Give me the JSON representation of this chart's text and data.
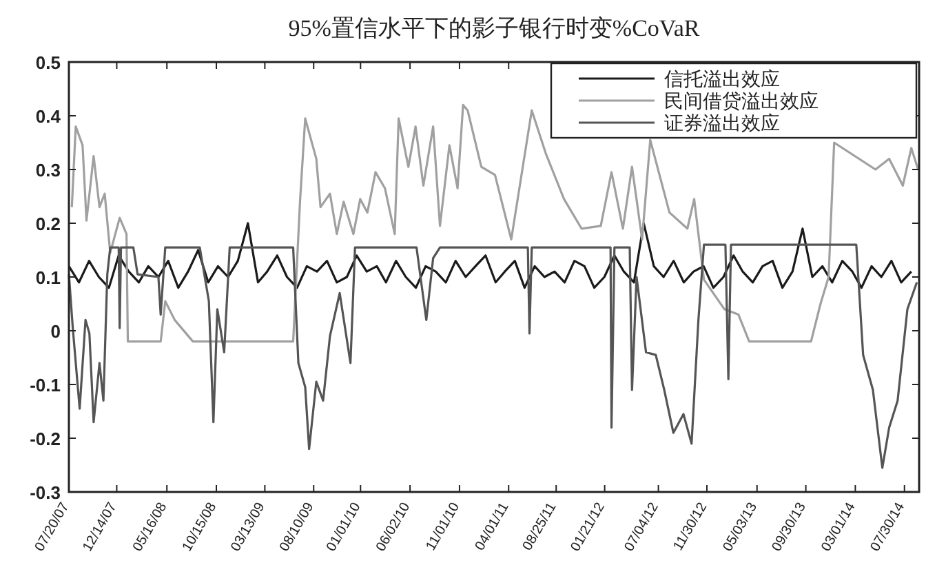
{
  "chart_data": {
    "type": "line",
    "title": "95%置信水平下的影子银行时变%CoVaR",
    "xlim": [
      "2007-07-20",
      "2014-09-13"
    ],
    "xticks": [
      {
        "value": "2007-07-20",
        "label": "07/20/07"
      },
      {
        "value": "2007-12-14",
        "label": "12/14/07"
      },
      {
        "value": "2008-05-16",
        "label": "05/16/08"
      },
      {
        "value": "2008-10-15",
        "label": "10/15/08"
      },
      {
        "value": "2009-03-13",
        "label": "03/13/09"
      },
      {
        "value": "2009-08-10",
        "label": "08/10/09"
      },
      {
        "value": "2010-01-01",
        "label": "01/01/10"
      },
      {
        "value": "2010-06-02",
        "label": "06/02/10"
      },
      {
        "value": "2010-11-01",
        "label": "11/01/10"
      },
      {
        "value": "2011-04-01",
        "label": "04/01/11"
      },
      {
        "value": "2011-08-25",
        "label": "08/25/11"
      },
      {
        "value": "2012-01-21",
        "label": "01/21/12"
      },
      {
        "value": "2012-07-04",
        "label": "07/04/12"
      },
      {
        "value": "2012-11-30",
        "label": "11/30/12"
      },
      {
        "value": "2013-05-03",
        "label": "05/03/13"
      },
      {
        "value": "2013-09-30",
        "label": "09/30/13"
      },
      {
        "value": "2014-03-01",
        "label": "03/01/14"
      },
      {
        "value": "2014-07-30",
        "label": "07/30/14"
      }
    ],
    "ylim": [
      -0.3,
      0.5
    ],
    "yticks": [
      -0.3,
      -0.2,
      -0.1,
      0,
      0.1,
      0.2,
      0.3,
      0.4,
      0.5
    ],
    "grid": false,
    "legend": "top right",
    "marker": "none",
    "line_style": "solid",
    "series": [
      {
        "name": "信托溢出效应",
        "color": "#1a1a1a",
        "x": [
          "2007-07-20",
          "2007-08-20",
          "2007-09-20",
          "2007-10-20",
          "2007-11-20",
          "2007-12-20",
          "2008-01-20",
          "2008-02-20",
          "2008-03-20",
          "2008-04-20",
          "2008-05-20",
          "2008-06-20",
          "2008-07-20",
          "2008-08-20",
          "2008-09-20",
          "2008-10-20",
          "2008-11-20",
          "2008-12-20",
          "2009-01-20",
          "2009-02-20",
          "2009-03-20",
          "2009-04-20",
          "2009-05-20",
          "2009-06-20",
          "2009-07-20",
          "2009-08-20",
          "2009-09-20",
          "2009-10-20",
          "2009-11-20",
          "2009-12-20",
          "2010-01-20",
          "2010-02-20",
          "2010-03-20",
          "2010-04-20",
          "2010-05-20",
          "2010-06-20",
          "2010-07-20",
          "2010-08-20",
          "2010-09-20",
          "2010-10-20",
          "2010-11-20",
          "2010-12-20",
          "2011-01-20",
          "2011-02-20",
          "2011-03-20",
          "2011-04-20",
          "2011-05-20",
          "2011-06-20",
          "2011-07-20",
          "2011-08-20",
          "2011-09-20",
          "2011-10-20",
          "2011-11-20",
          "2011-12-20",
          "2012-01-20",
          "2012-02-20",
          "2012-03-20",
          "2012-04-20",
          "2012-05-20",
          "2012-06-20",
          "2012-07-20",
          "2012-08-20",
          "2012-09-20",
          "2012-10-20",
          "2012-11-20",
          "2012-12-20",
          "2013-01-20",
          "2013-02-20",
          "2013-03-20",
          "2013-04-20",
          "2013-05-20",
          "2013-06-20",
          "2013-07-20",
          "2013-08-20",
          "2013-09-20",
          "2013-10-20",
          "2013-11-20",
          "2013-12-20",
          "2014-01-20",
          "2014-02-20",
          "2014-03-20",
          "2014-04-20",
          "2014-05-20",
          "2014-06-20",
          "2014-07-20",
          "2014-08-20"
        ],
        "values": [
          0.12,
          0.09,
          0.13,
          0.1,
          0.08,
          0.14,
          0.11,
          0.09,
          0.12,
          0.1,
          0.13,
          0.08,
          0.11,
          0.15,
          0.09,
          0.12,
          0.1,
          0.13,
          0.2,
          0.09,
          0.11,
          0.14,
          0.1,
          0.08,
          0.12,
          0.11,
          0.13,
          0.09,
          0.1,
          0.14,
          0.11,
          0.12,
          0.09,
          0.13,
          0.1,
          0.08,
          0.12,
          0.11,
          0.09,
          0.13,
          0.1,
          0.12,
          0.14,
          0.09,
          0.11,
          0.13,
          0.08,
          0.12,
          0.1,
          0.11,
          0.09,
          0.13,
          0.12,
          0.08,
          0.1,
          0.14,
          0.11,
          0.09,
          0.2,
          0.12,
          0.1,
          0.13,
          0.09,
          0.11,
          0.12,
          0.08,
          0.1,
          0.14,
          0.11,
          0.09,
          0.12,
          0.13,
          0.08,
          0.11,
          0.19,
          0.1,
          0.12,
          0.09,
          0.13,
          0.11,
          0.08,
          0.12,
          0.1,
          0.13,
          0.09,
          0.11
        ]
      },
      {
        "name": "民间借贷溢出效应",
        "color": "#a0a0a0",
        "x": [
          "2007-07-29",
          "2007-08-10",
          "2007-08-31",
          "2007-09-12",
          "2007-10-04",
          "2007-10-22",
          "2007-11-07",
          "2007-11-24",
          "2007-12-23",
          "2008-01-13",
          "2008-01-17",
          "2008-04-27",
          "2008-05-11",
          "2008-06-09",
          "2008-08-04",
          "2009-06-08",
          "2009-06-29",
          "2009-07-15",
          "2009-08-18",
          "2009-08-31",
          "2009-09-29",
          "2009-10-20",
          "2009-11-10",
          "2009-12-10",
          "2009-12-31",
          "2010-01-22",
          "2010-02-16",
          "2010-03-17",
          "2010-04-16",
          "2010-04-28",
          "2010-05-28",
          "2010-06-19",
          "2010-07-13",
          "2010-08-12",
          "2010-09-02",
          "2010-10-01",
          "2010-10-26",
          "2010-11-12",
          "2010-11-26",
          "2011-01-07",
          "2011-02-18",
          "2011-04-09",
          "2011-06-11",
          "2011-07-24",
          "2011-09-18",
          "2011-11-11",
          "2012-01-09",
          "2012-02-11",
          "2012-03-17",
          "2012-04-14",
          "2012-05-15",
          "2012-06-09",
          "2012-08-07",
          "2012-10-01",
          "2012-10-22",
          "2012-11-21",
          "2013-01-23",
          "2013-03-07",
          "2013-04-09",
          "2013-10-16",
          "2013-11-14",
          "2013-12-09",
          "2013-12-26",
          "2014-05-02",
          "2014-06-13",
          "2014-07-25",
          "2014-08-20",
          "2014-09-10"
        ],
        "values": [
          0.23,
          0.38,
          0.345,
          0.205,
          0.325,
          0.23,
          0.255,
          0.145,
          0.21,
          0.18,
          -0.02,
          -0.02,
          0.055,
          0.02,
          -0.02,
          -0.02,
          0.24,
          0.395,
          0.32,
          0.23,
          0.255,
          0.18,
          0.24,
          0.18,
          0.245,
          0.22,
          0.295,
          0.265,
          0.18,
          0.395,
          0.305,
          0.38,
          0.27,
          0.38,
          0.195,
          0.345,
          0.265,
          0.42,
          0.41,
          0.305,
          0.29,
          0.17,
          0.41,
          0.33,
          0.245,
          0.19,
          0.195,
          0.295,
          0.19,
          0.305,
          0.17,
          0.355,
          0.22,
          0.19,
          0.245,
          0.095,
          0.04,
          0.03,
          -0.02,
          -0.02,
          0.05,
          0.1,
          0.35,
          0.3,
          0.32,
          0.27,
          0.34,
          0.3
        ]
      },
      {
        "name": "证券溢出效应",
        "color": "#555555",
        "x": [
          "2007-07-20",
          "2007-08-01",
          "2007-08-22",
          "2007-09-09",
          "2007-09-21",
          "2007-10-04",
          "2007-10-22",
          "2007-11-03",
          "2007-11-15",
          "2007-11-24",
          "2007-12-20",
          "2007-12-23",
          "2007-12-27",
          "2008-02-03",
          "2008-02-16",
          "2008-04-20",
          "2008-04-27",
          "2008-05-11",
          "2008-08-25",
          "2008-09-22",
          "2008-10-06",
          "2008-10-18",
          "2008-11-08",
          "2008-11-25",
          "2009-06-08",
          "2009-06-24",
          "2009-07-15",
          "2009-07-27",
          "2009-08-18",
          "2009-09-08",
          "2009-09-29",
          "2009-10-29",
          "2009-12-01",
          "2009-12-15",
          "2010-06-22",
          "2010-07-22",
          "2010-08-12",
          "2010-09-02",
          "2011-05-30",
          "2011-06-04",
          "2011-06-11",
          "2012-02-08",
          "2012-02-11",
          "2012-02-20",
          "2012-04-07",
          "2012-04-14",
          "2012-04-28",
          "2012-05-27",
          "2012-06-26",
          "2012-07-22",
          "2012-08-19",
          "2012-09-19",
          "2012-10-14",
          "2012-11-04",
          "2012-11-21",
          "2013-01-26",
          "2013-02-04",
          "2013-02-12",
          "2013-08-21",
          "2014-03-04",
          "2014-03-25",
          "2014-04-24",
          "2014-05-23",
          "2014-06-13",
          "2014-07-09",
          "2014-08-08",
          "2014-09-06"
        ],
        "values": [
          0.105,
          0.005,
          -0.145,
          0.02,
          -0.005,
          -0.17,
          -0.06,
          -0.13,
          0.105,
          0.155,
          0.155,
          0.005,
          0.155,
          0.155,
          0.105,
          0.1,
          0.03,
          0.155,
          0.155,
          0.055,
          -0.17,
          0.04,
          -0.04,
          0.155,
          0.155,
          -0.06,
          -0.105,
          -0.22,
          -0.095,
          -0.13,
          -0.01,
          0.07,
          -0.06,
          0.155,
          0.155,
          0.02,
          0.135,
          0.155,
          0.155,
          -0.005,
          0.155,
          0.155,
          -0.18,
          0.155,
          0.155,
          -0.11,
          0.1,
          -0.04,
          -0.045,
          -0.11,
          -0.19,
          -0.155,
          -0.21,
          0.02,
          0.16,
          0.16,
          -0.09,
          0.16,
          0.16,
          0.16,
          -0.045,
          -0.11,
          -0.255,
          -0.18,
          -0.13,
          0.04,
          0.09
        ]
      }
    ]
  }
}
